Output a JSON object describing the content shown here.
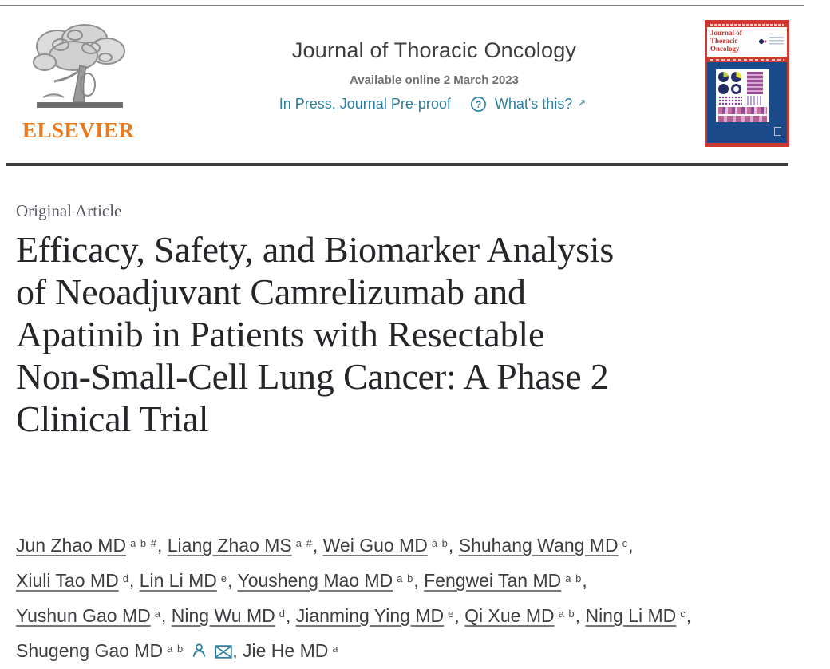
{
  "header": {
    "elsevier_wordmark": "ELSEVIER",
    "journal_name": "Journal of Thoracic Oncology",
    "available": "Available online 2 March 2023",
    "status": "In Press, Journal Pre-proof",
    "whats_this": "What's this?",
    "external_arrow": "↗"
  },
  "cover": {
    "title_lines": [
      "Journal of",
      "Thoracic",
      "Oncology"
    ]
  },
  "article": {
    "category": "Original Article",
    "title": "Efficacy, Safety, and Biomarker Analysis of Neoadjuvant Camrelizumab and Apatinib in Patients with Resectable Non-Small-Cell Lung Cancer: A Phase 2 Clinical Trial",
    "title_lines": [
      "Efficacy, Safety, and Biomarker Analysis",
      "of Neoadjuvant Camrelizumab and",
      "Apatinib in Patients with Resectable",
      "Non-Small-Cell Lung Cancer: A Phase 2",
      "Clinical Trial"
    ]
  },
  "authors": {
    "lines": [
      [
        {
          "name": "Jun Zhao MD",
          "sup": "a b #",
          "underline": true,
          "trail": ", "
        },
        {
          "name": "Liang Zhao MS",
          "sup": "a #",
          "underline": true,
          "trail": ", "
        },
        {
          "name": "Wei Guo MD",
          "sup": "a b",
          "underline": true,
          "trail": ", "
        },
        {
          "name": "Shuhang Wang MD",
          "sup": "c",
          "underline": true,
          "trail": ","
        }
      ],
      [
        {
          "name": "Xiuli Tao MD",
          "sup": "d",
          "underline": true,
          "trail": ", "
        },
        {
          "name": "Lin Li MD",
          "sup": "e",
          "underline": true,
          "trail": ", "
        },
        {
          "name": "Yousheng Mao MD",
          "sup": "a b",
          "underline": true,
          "trail": ", "
        },
        {
          "name": "Fengwei Tan MD",
          "sup": "a b",
          "underline": true,
          "trail": ","
        }
      ],
      [
        {
          "name": "Yushun Gao MD",
          "sup": "a",
          "underline": true,
          "trail": ", "
        },
        {
          "name": "Ning Wu MD",
          "sup": "d",
          "underline": true,
          "trail": ", "
        },
        {
          "name": "Jianming Ying MD",
          "sup": "e",
          "underline": true,
          "trail": ", "
        },
        {
          "name": "Qi Xue MD",
          "sup": "a b",
          "underline": true,
          "trail": ", "
        },
        {
          "name": "Ning Li MD",
          "sup": "c",
          "underline": true,
          "trail": ","
        }
      ],
      [
        {
          "name": "Shugeng Gao MD",
          "sup": "a b",
          "underline": false,
          "icons": [
            "author-profile",
            "correspondence-email"
          ],
          "trail": ", "
        },
        {
          "name": "Jie He MD",
          "sup": "a",
          "underline": false,
          "trail": ""
        }
      ]
    ]
  },
  "icons": {
    "status_help": "question-circle-icon",
    "external_link": "north-east-arrow-icon",
    "author_profile": "author-profile-icon",
    "correspondence": "email-envelope-icon"
  },
  "colors": {
    "link_teal": "#2e7f9e",
    "elsevier_orange": "#e87a1d",
    "cover_red": "#cd3a30",
    "cover_blue": "#1a4a8a",
    "title_ink": "#26262a"
  }
}
